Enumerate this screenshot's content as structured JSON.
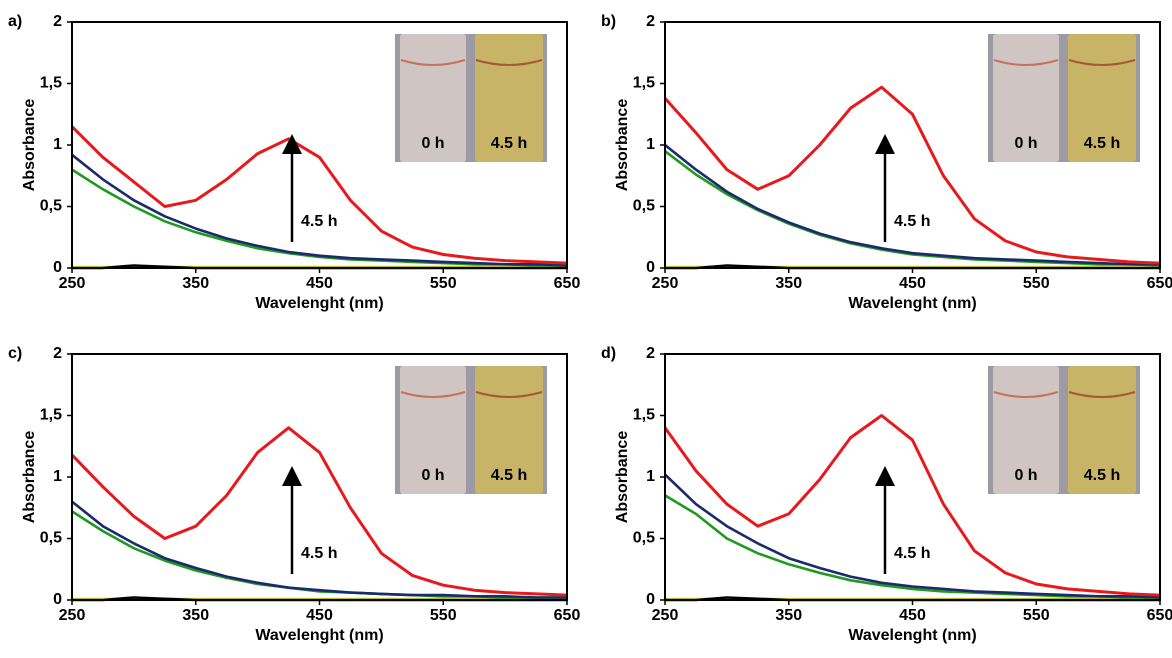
{
  "chart_data": [
    {
      "type": "line",
      "panel_label": "a)",
      "xlabel": "Wavelenght (nm)",
      "ylabel": "Absorbance",
      "annotation": "4.5 h",
      "inset_labels": [
        "0 h",
        "4.5 h"
      ],
      "x": [
        250,
        275,
        300,
        325,
        350,
        375,
        400,
        425,
        450,
        475,
        500,
        525,
        550,
        575,
        600,
        625,
        650
      ],
      "xlim": [
        250,
        650
      ],
      "xticks": [
        250,
        350,
        450,
        550,
        650
      ],
      "ylim": [
        0,
        2
      ],
      "yticks": [
        0,
        {
          "value": 0.5,
          "label": "0,5"
        },
        1,
        {
          "value": 1.5,
          "label": "1,5"
        },
        2
      ],
      "series": [
        {
          "color": "#ffff00",
          "values": [
            0.01,
            0.01,
            0.01,
            0.01,
            0.01,
            0.01,
            0.01,
            0.01,
            0.01,
            0.01,
            0.01,
            0.01,
            0.01,
            0.01,
            0.01,
            0.01,
            0.01
          ]
        },
        {
          "color": "#000000",
          "values": [
            0,
            0,
            0.02,
            0.01,
            0,
            0,
            0,
            0,
            0,
            0,
            0,
            0,
            0,
            0,
            0,
            0,
            0
          ]
        },
        {
          "color": "#1f9a1f",
          "values": [
            0.8,
            0.64,
            0.5,
            0.38,
            0.29,
            0.22,
            0.16,
            0.12,
            0.09,
            0.07,
            0.06,
            0.05,
            0.04,
            0.03,
            0.03,
            0.02,
            0.02
          ]
        },
        {
          "color": "#1a2a6c",
          "values": [
            0.92,
            0.72,
            0.55,
            0.42,
            0.32,
            0.24,
            0.18,
            0.13,
            0.1,
            0.08,
            0.07,
            0.06,
            0.05,
            0.04,
            0.03,
            0.03,
            0.02
          ]
        },
        {
          "color": "#e8191c",
          "values": [
            1.15,
            0.9,
            0.7,
            0.5,
            0.55,
            0.72,
            0.93,
            1.05,
            0.9,
            0.55,
            0.3,
            0.17,
            0.11,
            0.08,
            0.06,
            0.05,
            0.04
          ]
        }
      ]
    },
    {
      "type": "line",
      "panel_label": "b)",
      "xlabel": "Wavelenght (nm)",
      "ylabel": "Absorbance",
      "annotation": "4.5 h",
      "inset_labels": [
        "0 h",
        "4.5 h"
      ],
      "x": [
        250,
        275,
        300,
        325,
        350,
        375,
        400,
        425,
        450,
        475,
        500,
        525,
        550,
        575,
        600,
        625,
        650
      ],
      "xlim": [
        250,
        650
      ],
      "xticks": [
        250,
        350,
        450,
        550,
        650
      ],
      "ylim": [
        0,
        2
      ],
      "yticks": [
        0,
        {
          "value": 0.5,
          "label": "0,5"
        },
        1,
        {
          "value": 1.5,
          "label": "1,5"
        },
        2
      ],
      "series": [
        {
          "color": "#ffff00",
          "values": [
            0.01,
            0.01,
            0.01,
            0.01,
            0.01,
            0.01,
            0.01,
            0.01,
            0.01,
            0.01,
            0.01,
            0.01,
            0.01,
            0.01,
            0.01,
            0.01,
            0.01
          ]
        },
        {
          "color": "#000000",
          "values": [
            0,
            0,
            0.02,
            0.01,
            0,
            0,
            0,
            0,
            0,
            0,
            0,
            0,
            0,
            0,
            0,
            0,
            0
          ]
        },
        {
          "color": "#1f9a1f",
          "values": [
            0.95,
            0.76,
            0.6,
            0.47,
            0.36,
            0.27,
            0.2,
            0.15,
            0.11,
            0.09,
            0.07,
            0.06,
            0.05,
            0.04,
            0.03,
            0.03,
            0.02
          ]
        },
        {
          "color": "#1a2a6c",
          "values": [
            1.0,
            0.8,
            0.62,
            0.48,
            0.37,
            0.28,
            0.21,
            0.16,
            0.12,
            0.1,
            0.08,
            0.07,
            0.06,
            0.05,
            0.04,
            0.03,
            0.03
          ]
        },
        {
          "color": "#e8191c",
          "values": [
            1.38,
            1.1,
            0.8,
            0.64,
            0.75,
            1.0,
            1.3,
            1.47,
            1.25,
            0.75,
            0.4,
            0.22,
            0.13,
            0.09,
            0.07,
            0.05,
            0.04
          ]
        }
      ]
    },
    {
      "type": "line",
      "panel_label": "c)",
      "xlabel": "Wavelenght (nm)",
      "ylabel": "Absorbance",
      "annotation": "4.5 h",
      "inset_labels": [
        "0 h",
        "4.5 h"
      ],
      "x": [
        250,
        275,
        300,
        325,
        350,
        375,
        400,
        425,
        450,
        475,
        500,
        525,
        550,
        575,
        600,
        625,
        650
      ],
      "xlim": [
        250,
        650
      ],
      "xticks": [
        250,
        350,
        450,
        550,
        650
      ],
      "ylim": [
        0,
        2
      ],
      "yticks": [
        0,
        {
          "value": 0.5,
          "label": "0,5"
        },
        1,
        {
          "value": 1.5,
          "label": "1,5"
        },
        2
      ],
      "series": [
        {
          "color": "#ffff00",
          "values": [
            0.01,
            0.01,
            0.01,
            0.01,
            0.01,
            0.01,
            0.01,
            0.01,
            0.01,
            0.01,
            0.01,
            0.01,
            0.01,
            0.01,
            0.01,
            0.01,
            0.01
          ]
        },
        {
          "color": "#000000",
          "values": [
            0,
            0,
            0.02,
            0.01,
            0,
            0,
            0,
            0,
            0,
            0,
            0,
            0,
            0,
            0,
            0,
            0,
            0
          ]
        },
        {
          "color": "#1f9a1f",
          "values": [
            0.72,
            0.56,
            0.42,
            0.32,
            0.24,
            0.18,
            0.13,
            0.1,
            0.07,
            0.06,
            0.05,
            0.04,
            0.03,
            0.03,
            0.02,
            0.02,
            0.02
          ]
        },
        {
          "color": "#1a2a6c",
          "values": [
            0.8,
            0.6,
            0.46,
            0.34,
            0.26,
            0.19,
            0.14,
            0.1,
            0.08,
            0.06,
            0.05,
            0.04,
            0.04,
            0.03,
            0.03,
            0.02,
            0.02
          ]
        },
        {
          "color": "#e8191c",
          "values": [
            1.18,
            0.92,
            0.68,
            0.5,
            0.6,
            0.85,
            1.2,
            1.4,
            1.2,
            0.75,
            0.38,
            0.2,
            0.12,
            0.08,
            0.06,
            0.05,
            0.04
          ]
        }
      ]
    },
    {
      "type": "line",
      "panel_label": "d)",
      "xlabel": "Wavelenght (nm)",
      "ylabel": "Absorbance",
      "annotation": "4.5 h",
      "inset_labels": [
        "0 h",
        "4.5 h"
      ],
      "x": [
        250,
        275,
        300,
        325,
        350,
        375,
        400,
        425,
        450,
        475,
        500,
        525,
        550,
        575,
        600,
        625,
        650
      ],
      "xlim": [
        250,
        650
      ],
      "xticks": [
        250,
        350,
        450,
        550,
        650
      ],
      "ylim": [
        0,
        2
      ],
      "yticks": [
        0,
        {
          "value": 0.5,
          "label": "0,5"
        },
        1,
        {
          "value": 1.5,
          "label": "1,5"
        },
        2
      ],
      "series": [
        {
          "color": "#ffff00",
          "values": [
            0.01,
            0.01,
            0.01,
            0.01,
            0.01,
            0.01,
            0.01,
            0.01,
            0.01,
            0.01,
            0.01,
            0.01,
            0.01,
            0.01,
            0.01,
            0.01,
            0.01
          ]
        },
        {
          "color": "#000000",
          "values": [
            0,
            0,
            0.02,
            0.01,
            0,
            0,
            0,
            0,
            0,
            0,
            0,
            0,
            0,
            0,
            0,
            0,
            0
          ]
        },
        {
          "color": "#1f9a1f",
          "values": [
            0.85,
            0.7,
            0.5,
            0.38,
            0.29,
            0.22,
            0.16,
            0.12,
            0.09,
            0.07,
            0.06,
            0.05,
            0.04,
            0.03,
            0.03,
            0.02,
            0.02
          ]
        },
        {
          "color": "#1a2a6c",
          "values": [
            1.02,
            0.78,
            0.6,
            0.46,
            0.34,
            0.26,
            0.19,
            0.14,
            0.11,
            0.09,
            0.07,
            0.06,
            0.05,
            0.04,
            0.03,
            0.03,
            0.02
          ]
        },
        {
          "color": "#e8191c",
          "values": [
            1.4,
            1.05,
            0.78,
            0.6,
            0.7,
            0.98,
            1.32,
            1.5,
            1.3,
            0.78,
            0.4,
            0.22,
            0.13,
            0.09,
            0.07,
            0.05,
            0.04
          ]
        }
      ]
    }
  ]
}
